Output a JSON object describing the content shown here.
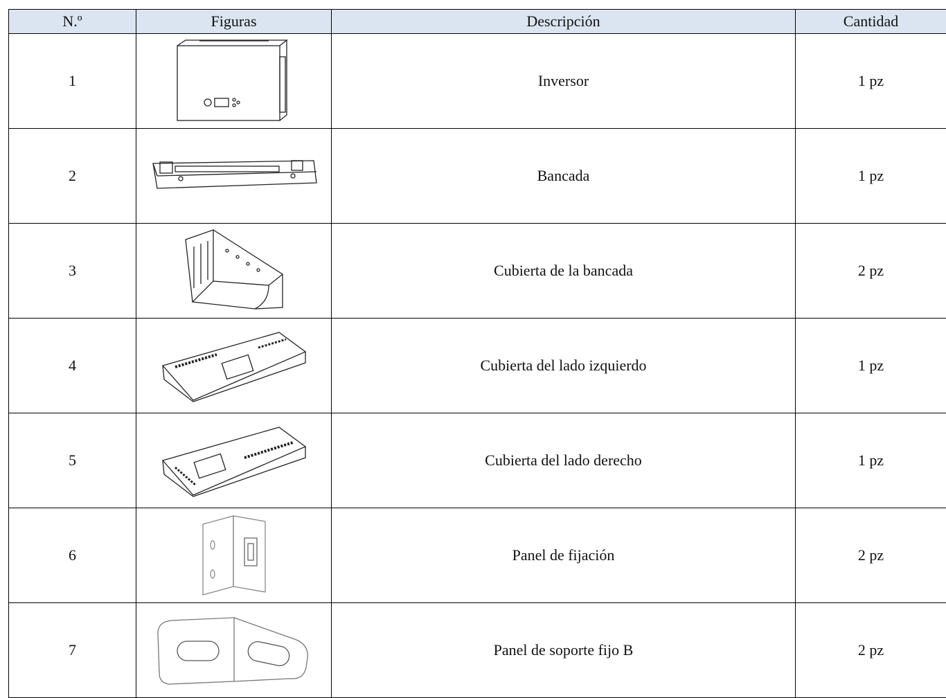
{
  "table": {
    "header": [
      "N.º",
      "Figuras",
      "Descripción",
      "Cantidad"
    ],
    "rows": [
      [
        "1",
        "Inversor",
        "1 pz"
      ],
      [
        "2",
        "Bancada",
        "1 pz"
      ],
      [
        "3",
        "Cubierta de la bancada",
        "2 pz"
      ],
      [
        "4",
        "Cubierta del lado izquierdo",
        "1 pz"
      ],
      [
        "5",
        "Cubierta del lado derecho",
        "1 pz"
      ],
      [
        "6",
        "Panel de fijación",
        "2 pz"
      ],
      [
        "7",
        "Panel de soporte fijo B",
        "2 pz"
      ]
    ]
  }
}
